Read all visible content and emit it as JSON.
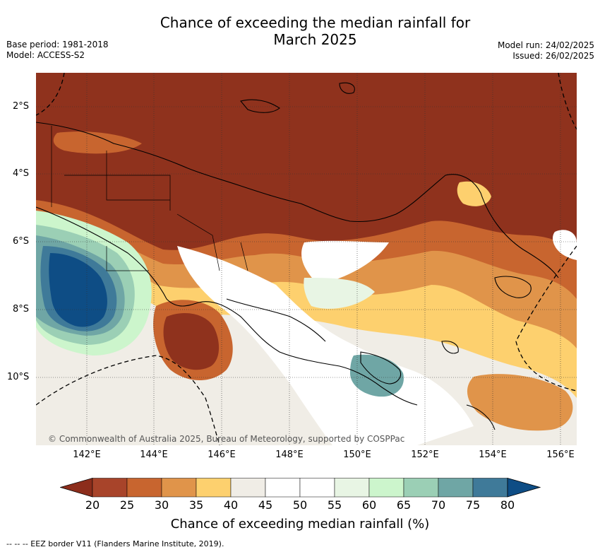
{
  "title_line1": "Chance of exceeding the median rainfall for",
  "title_line2": "March 2025",
  "base_period": "Base period: 1981-2018",
  "model": "Model: ACCESS-S2",
  "model_run": "Model run: 24/02/2025",
  "issued": "Issued: 26/02/2025",
  "lat_labels": [
    "2°S",
    "4°S",
    "6°S",
    "8°S",
    "10°S"
  ],
  "lon_labels": [
    "142°E",
    "144°E",
    "146°E",
    "148°E",
    "150°E",
    "152°E",
    "154°E",
    "156°E"
  ],
  "copyright": "© Commonwealth of Australia 2025, Bureau of Meteorology, supported by COSPPac",
  "colorbar": {
    "labels": [
      "20",
      "25",
      "30",
      "35",
      "40",
      "45",
      "50",
      "55",
      "60",
      "65",
      "70",
      "75",
      "80"
    ],
    "colors": [
      "#8c2d1b",
      "#a8442a",
      "#c8652f",
      "#e0944a",
      "#fdd06e",
      "#f0ede6",
      "#ffffff",
      "#ffffff",
      "#e8f5e4",
      "#ccf5cc",
      "#9bcfb5",
      "#6fa6a5",
      "#3f7a99",
      "#0e4d85"
    ],
    "title": "Chance of exceeding median rainfall (%)"
  },
  "footnote": "-- -- -- EEZ border V11 (Flanders Marine Institute, 2019)."
}
